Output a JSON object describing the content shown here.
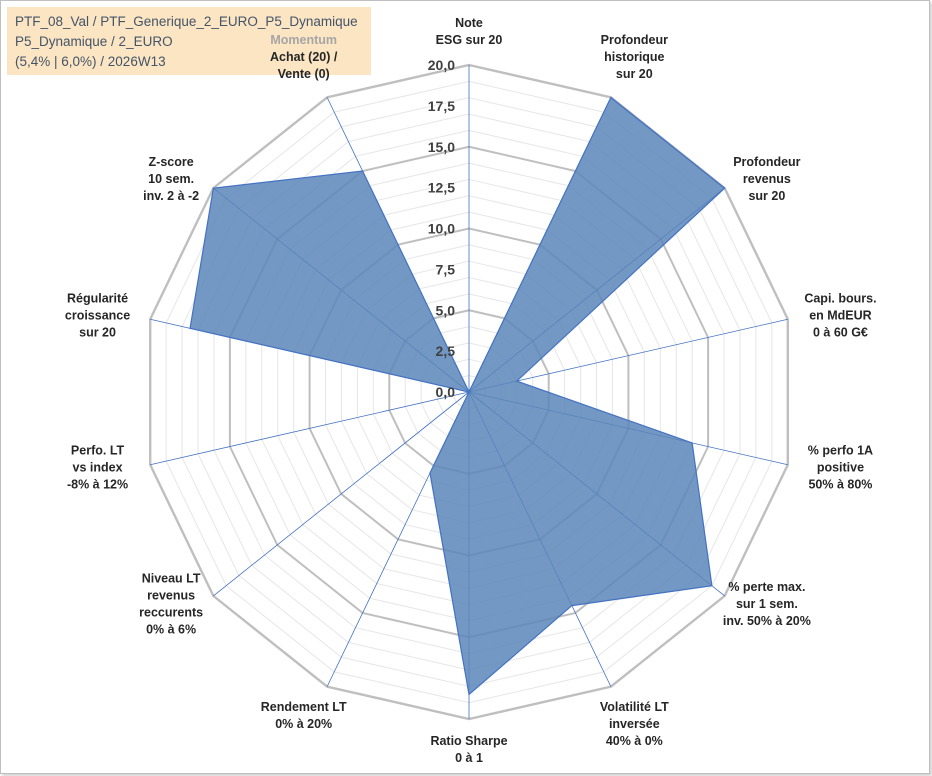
{
  "header": {
    "line1": "PTF_08_Val / PTF_Generique_2_EURO_P5_Dynamique",
    "line2": "P5_Dynamique / 2_EURO",
    "line3": "(5,4% | 6,0%) / 2026W13"
  },
  "chart_data": {
    "type": "radar",
    "title": "PTF_08_Val / PTF_Generique_2_EURO_P5_Dynamique",
    "rlim": [
      0,
      20
    ],
    "tick_values": [
      0,
      2.5,
      5,
      7.5,
      10,
      12.5,
      15,
      17.5,
      20
    ],
    "tick_labels": [
      "0,0",
      "2,5",
      "5,0",
      "7,5",
      "10,0",
      "12,5",
      "15,0",
      "17,5",
      "20,0"
    ],
    "categories": [
      {
        "lines": [
          "Note",
          "ESG sur 20"
        ]
      },
      {
        "lines": [
          "Profondeur",
          "historique",
          "sur 20"
        ]
      },
      {
        "lines": [
          "Profondeur",
          "revenus",
          "sur 20"
        ]
      },
      {
        "lines": [
          "Capi. bours.",
          "en MdEUR",
          "0 à 60 G€"
        ]
      },
      {
        "lines": [
          "% perfo 1A",
          "positive",
          "50% à 80%"
        ]
      },
      {
        "lines": [
          "% perte max.",
          "sur 1 sem.",
          "inv. 50% à 20%"
        ]
      },
      {
        "lines": [
          "Volatilité LT",
          "inversée",
          "40% à 0%"
        ]
      },
      {
        "lines": [
          "Ratio Sharpe",
          "0 à 1"
        ]
      },
      {
        "lines": [
          "Rendement LT",
          "0% à 20%"
        ]
      },
      {
        "lines": [
          "Niveau LT",
          "revenus",
          "reccurents",
          "0% à 6%"
        ]
      },
      {
        "lines": [
          "Perfo. LT",
          "vs index",
          "-8% à 12%"
        ]
      },
      {
        "lines": [
          "Régularité",
          "croissance",
          "sur 20"
        ]
      },
      {
        "lines": [
          "Z-score",
          "10 sem.",
          "inv. 2 à -2"
        ]
      },
      {
        "lines": [
          "Momentum",
          "Achat (20) /",
          "Vente (0)"
        ],
        "highlight_first": true
      }
    ],
    "series": [
      {
        "name": "PTF_08_Val",
        "color": "#4f81bd",
        "values": [
          0,
          20,
          20,
          3,
          14,
          19,
          14.5,
          18.5,
          5.5,
          0,
          0,
          17.5,
          20,
          15
        ]
      }
    ]
  },
  "style": {
    "fill_color": "#5b86b8",
    "line_color": "#4472c4",
    "grid_color": "#c0c0c0",
    "spoke_color": "#4472c4",
    "header_bg": "#fbe5c2"
  }
}
